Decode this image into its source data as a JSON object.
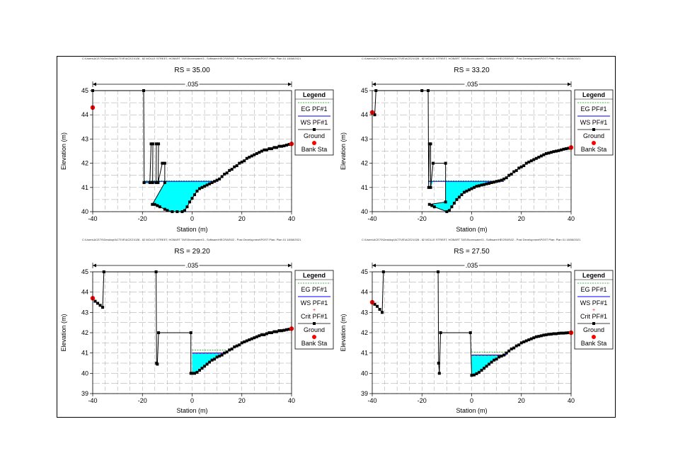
{
  "file_path": "C:\\Users\\ACE70\\Desktop\\ACTIVE\\ACE21028 - 82 MOLLE STREET, HOBART TAS\\Stormwater\\3 - Software\\HECRAS\\02 - Post Development\\POST     Plan: Plan 01    18/08/2021",
  "legend": {
    "title": "Legend",
    "eg": "EG PF#1",
    "ws": "WS PF#1",
    "crit": "Crit PF#1",
    "ground": "Ground",
    "bank": "Bank Sta"
  },
  "colors": {
    "water_fill": "#00FFFF",
    "ws_line": "#0000FF",
    "eg_line": "#00A000",
    "crit_line": "#FF0000",
    "ground": "#000000",
    "bank": "#FF0000",
    "grid": "#A0A0A0"
  },
  "chart_data": [
    {
      "type": "line",
      "title": "RS = 35.00",
      "xlabel": "Station (m)",
      "ylabel": "Elevation (m)",
      "n_label": ".035",
      "xlim": [
        -40,
        40
      ],
      "ylim": [
        40,
        45
      ],
      "xticks": [
        -40,
        -20,
        0,
        20,
        40
      ],
      "yticks": [
        40,
        41,
        42,
        43,
        44,
        45
      ],
      "grid": true,
      "legend_placement": "right",
      "show_crit": false,
      "ws_elevation": 41.25,
      "eg_elevation": 41.27,
      "ws_extent": [
        -19.5,
        10.5
      ],
      "ground_series": {
        "name": "Ground",
        "points": [
          [
            -40,
            45
          ],
          [
            -19.5,
            45
          ],
          [
            -19.3,
            41.2
          ],
          [
            -17,
            41.2
          ],
          [
            -16.5,
            42.8
          ],
          [
            -15.8,
            42.8
          ],
          [
            -15.9,
            41.2
          ],
          [
            -14.5,
            41.2
          ],
          [
            -14.4,
            42.8
          ],
          [
            -13.5,
            42.8
          ],
          [
            -13.7,
            41.2
          ],
          [
            -12,
            42
          ],
          [
            -11,
            42
          ],
          [
            -11,
            41.2
          ],
          [
            -16,
            40.3
          ],
          [
            -15,
            40.3
          ],
          [
            -14,
            40.25
          ],
          [
            -13,
            40.2
          ],
          [
            -11,
            40.1
          ],
          [
            -10,
            40.05
          ],
          [
            -8,
            40
          ],
          [
            -6,
            40
          ],
          [
            -4,
            40
          ],
          [
            -3,
            40.05
          ],
          [
            -2,
            40.2
          ],
          [
            -1,
            40.4
          ],
          [
            0,
            40.55
          ],
          [
            1,
            40.7
          ],
          [
            2,
            40.85
          ],
          [
            3,
            40.95
          ],
          [
            4,
            41
          ],
          [
            5,
            41.05
          ],
          [
            6,
            41.1
          ],
          [
            7,
            41.15
          ],
          [
            8,
            41.2
          ],
          [
            9,
            41.25
          ],
          [
            10,
            41.3
          ],
          [
            11,
            41.35
          ],
          [
            12,
            41.45
          ],
          [
            13,
            41.55
          ],
          [
            14,
            41.6
          ],
          [
            15,
            41.7
          ],
          [
            16,
            41.75
          ],
          [
            17,
            41.85
          ],
          [
            18,
            41.9
          ],
          [
            19,
            42
          ],
          [
            20,
            42.05
          ],
          [
            21,
            42.1
          ],
          [
            22,
            42.2
          ],
          [
            23,
            42.25
          ],
          [
            24,
            42.3
          ],
          [
            25,
            42.35
          ],
          [
            26,
            42.4
          ],
          [
            27,
            42.45
          ],
          [
            28,
            42.5
          ],
          [
            29,
            42.55
          ],
          [
            30,
            42.55
          ],
          [
            31,
            42.6
          ],
          [
            32,
            42.6
          ],
          [
            33,
            42.65
          ],
          [
            34,
            42.65
          ],
          [
            35,
            42.7
          ],
          [
            36,
            42.7
          ],
          [
            37,
            42.72
          ],
          [
            38,
            42.75
          ],
          [
            39,
            42.78
          ],
          [
            40,
            42.8
          ]
        ]
      },
      "bank_stations": [
        [
          -40,
          44.3
        ],
        [
          40,
          42.8
        ]
      ]
    },
    {
      "type": "line",
      "title": "RS = 33.20",
      "xlabel": "Station (m)",
      "ylabel": "Elevation (m)",
      "n_label": ".035",
      "xlim": [
        -40,
        40
      ],
      "ylim": [
        40,
        45
      ],
      "xticks": [
        -40,
        -20,
        0,
        20,
        40
      ],
      "yticks": [
        40,
        41,
        42,
        43,
        44,
        45
      ],
      "grid": true,
      "legend_placement": "right",
      "show_crit": false,
      "ws_elevation": 41.25,
      "eg_elevation": 41.27,
      "ws_extent": [
        -17.5,
        13
      ],
      "ground_series": {
        "name": "Ground",
        "points": [
          [
            -40,
            44.1
          ],
          [
            -39,
            44
          ],
          [
            -38.5,
            45
          ],
          [
            -20,
            45
          ],
          [
            -17.5,
            45
          ],
          [
            -17.3,
            41
          ],
          [
            -17,
            42.8
          ],
          [
            -16.5,
            42.8
          ],
          [
            -16.5,
            41
          ],
          [
            -15.5,
            42
          ],
          [
            -10.5,
            42
          ],
          [
            -10.5,
            40.4
          ],
          [
            -17,
            40.3
          ],
          [
            -16,
            40.25
          ],
          [
            -15,
            40.2
          ],
          [
            -10,
            40
          ],
          [
            -9,
            40.05
          ],
          [
            -8,
            40.2
          ],
          [
            -7,
            40.35
          ],
          [
            -6,
            40.5
          ],
          [
            -5,
            40.6
          ],
          [
            -4,
            40.7
          ],
          [
            -3,
            40.8
          ],
          [
            -2,
            40.85
          ],
          [
            -1,
            40.9
          ],
          [
            0,
            40.95
          ],
          [
            1,
            41
          ],
          [
            2,
            41.05
          ],
          [
            3,
            41.07
          ],
          [
            4,
            41.1
          ],
          [
            5,
            41.12
          ],
          [
            6,
            41.15
          ],
          [
            7,
            41.17
          ],
          [
            8,
            41.2
          ],
          [
            9,
            41.22
          ],
          [
            10,
            41.25
          ],
          [
            11,
            41.27
          ],
          [
            12,
            41.3
          ],
          [
            13,
            41.35
          ],
          [
            14,
            41.4
          ],
          [
            15,
            41.5
          ],
          [
            16,
            41.55
          ],
          [
            17,
            41.65
          ],
          [
            18,
            41.7
          ],
          [
            19,
            41.8
          ],
          [
            20,
            41.85
          ],
          [
            21,
            41.9
          ],
          [
            22,
            42
          ],
          [
            23,
            42.05
          ],
          [
            24,
            42.1
          ],
          [
            25,
            42.15
          ],
          [
            26,
            42.2
          ],
          [
            27,
            42.25
          ],
          [
            28,
            42.3
          ],
          [
            29,
            42.35
          ],
          [
            30,
            42.4
          ],
          [
            31,
            42.42
          ],
          [
            32,
            42.45
          ],
          [
            33,
            42.48
          ],
          [
            34,
            42.5
          ],
          [
            35,
            42.52
          ],
          [
            36,
            42.55
          ],
          [
            37,
            42.58
          ],
          [
            38,
            42.6
          ],
          [
            39,
            42.62
          ],
          [
            40,
            42.65
          ]
        ]
      },
      "bank_stations": [
        [
          -40,
          44.1
        ],
        [
          40,
          42.65
        ]
      ]
    },
    {
      "type": "line",
      "title": "RS = 29.20",
      "xlabel": "Station (m)",
      "ylabel": "Elevation (m)",
      "n_label": ".035",
      "xlim": [
        -40,
        40
      ],
      "ylim": [
        39,
        45
      ],
      "xticks": [
        -40,
        -20,
        0,
        20,
        40
      ],
      "yticks": [
        39,
        40,
        41,
        42,
        43,
        44,
        45
      ],
      "grid": true,
      "legend_placement": "right",
      "show_crit": true,
      "ws_elevation": 41.0,
      "eg_elevation": 41.15,
      "crit_elevation": 40.98,
      "ws_extent": [
        0,
        14
      ],
      "ground_series": {
        "name": "Ground",
        "points": [
          [
            -40,
            43.7
          ],
          [
            -39,
            43.55
          ],
          [
            -38,
            43.45
          ],
          [
            -37,
            43.35
          ],
          [
            -36,
            43.25
          ],
          [
            -35.5,
            45
          ],
          [
            -14.5,
            45
          ],
          [
            -14.3,
            40.5
          ],
          [
            -14,
            40.45
          ],
          [
            -13.5,
            42
          ],
          [
            -0.5,
            42
          ],
          [
            -0.5,
            40
          ],
          [
            0,
            40
          ],
          [
            1,
            40
          ],
          [
            2,
            40.05
          ],
          [
            3,
            40.15
          ],
          [
            4,
            40.25
          ],
          [
            5,
            40.35
          ],
          [
            6,
            40.45
          ],
          [
            7,
            40.55
          ],
          [
            8,
            40.65
          ],
          [
            9,
            40.7
          ],
          [
            10,
            40.8
          ],
          [
            11,
            40.85
          ],
          [
            12,
            40.9
          ],
          [
            13,
            41
          ],
          [
            14,
            41.05
          ],
          [
            15,
            41.15
          ],
          [
            16,
            41.2
          ],
          [
            17,
            41.3
          ],
          [
            18,
            41.35
          ],
          [
            19,
            41.4
          ],
          [
            20,
            41.5
          ],
          [
            21,
            41.55
          ],
          [
            22,
            41.6
          ],
          [
            23,
            41.65
          ],
          [
            24,
            41.7
          ],
          [
            25,
            41.75
          ],
          [
            26,
            41.8
          ],
          [
            27,
            41.85
          ],
          [
            28,
            41.9
          ],
          [
            29,
            41.9
          ],
          [
            30,
            41.95
          ],
          [
            31,
            42
          ],
          [
            32,
            42
          ],
          [
            33,
            42.05
          ],
          [
            34,
            42.05
          ],
          [
            35,
            42.1
          ],
          [
            36,
            42.1
          ],
          [
            37,
            42.12
          ],
          [
            38,
            42.15
          ],
          [
            39,
            42.17
          ],
          [
            40,
            42.2
          ]
        ]
      },
      "bank_stations": [
        [
          -40,
          43.7
        ],
        [
          40,
          42.2
        ]
      ]
    },
    {
      "type": "line",
      "title": "RS = 27.50",
      "xlabel": "Station (m)",
      "ylabel": "Elevation (m)",
      "n_label": ".035",
      "xlim": [
        -40,
        40
      ],
      "ylim": [
        39,
        45
      ],
      "xticks": [
        -40,
        -20,
        0,
        20,
        40
      ],
      "yticks": [
        39,
        40,
        41,
        42,
        43,
        44,
        45
      ],
      "grid": true,
      "legend_placement": "right",
      "show_crit": true,
      "ws_elevation": 40.9,
      "eg_elevation": 41.05,
      "crit_elevation": 40.88,
      "ws_extent": [
        0,
        14
      ],
      "ground_series": {
        "name": "Ground",
        "points": [
          [
            -40,
            43.5
          ],
          [
            -39,
            43.4
          ],
          [
            -38,
            43.3
          ],
          [
            -37,
            43.15
          ],
          [
            -36,
            43
          ],
          [
            -35.5,
            45
          ],
          [
            -13.5,
            45
          ],
          [
            -13.3,
            40.5
          ],
          [
            -13,
            40
          ],
          [
            -12.5,
            42
          ],
          [
            -0.5,
            42
          ],
          [
            0,
            39.9
          ],
          [
            1,
            39.92
          ],
          [
            2,
            39.98
          ],
          [
            3,
            40.05
          ],
          [
            4,
            40.15
          ],
          [
            5,
            40.25
          ],
          [
            6,
            40.35
          ],
          [
            7,
            40.45
          ],
          [
            8,
            40.55
          ],
          [
            9,
            40.65
          ],
          [
            10,
            40.7
          ],
          [
            11,
            40.8
          ],
          [
            12,
            40.85
          ],
          [
            13,
            40.9
          ],
          [
            14,
            41
          ],
          [
            15,
            41.1
          ],
          [
            16,
            41.2
          ],
          [
            17,
            41.25
          ],
          [
            18,
            41.35
          ],
          [
            19,
            41.4
          ],
          [
            20,
            41.5
          ],
          [
            21,
            41.55
          ],
          [
            22,
            41.6
          ],
          [
            23,
            41.65
          ],
          [
            24,
            41.7
          ],
          [
            25,
            41.75
          ],
          [
            26,
            41.8
          ],
          [
            27,
            41.82
          ],
          [
            28,
            41.85
          ],
          [
            29,
            41.88
          ],
          [
            30,
            41.9
          ],
          [
            31,
            41.92
          ],
          [
            32,
            41.93
          ],
          [
            33,
            41.95
          ],
          [
            34,
            41.95
          ],
          [
            35,
            41.97
          ],
          [
            36,
            41.98
          ],
          [
            37,
            41.98
          ],
          [
            38,
            41.99
          ],
          [
            39,
            42
          ],
          [
            40,
            42
          ]
        ]
      },
      "bank_stations": [
        [
          -40,
          43.5
        ],
        [
          40,
          42
        ]
      ]
    }
  ]
}
